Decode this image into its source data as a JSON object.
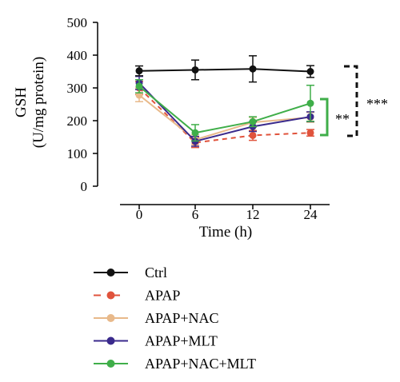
{
  "chart_data": {
    "type": "line",
    "ylabel_line1": "GSH",
    "ylabel_line2": "(U/mg protein)",
    "xlabel": "Time (h)",
    "ylim": [
      0,
      500
    ],
    "yticks": [
      "0",
      "100",
      "200",
      "300",
      "400",
      "500"
    ],
    "x": [
      0,
      6,
      12,
      24
    ],
    "xtick_labels": [
      "0",
      "6",
      "12",
      "24"
    ],
    "grid": false,
    "legend_position": "bottom",
    "series": [
      {
        "name": "Ctrl",
        "color": "#111111",
        "dashed": false,
        "values": [
          352,
          355,
          358,
          350
        ],
        "errors": [
          15,
          30,
          40,
          18
        ]
      },
      {
        "name": "APAP",
        "color": "#e0533c",
        "dashed": true,
        "values": [
          300,
          133,
          155,
          163
        ],
        "errors": [
          20,
          15,
          15,
          10
        ]
      },
      {
        "name": "APAP+NAC",
        "color": "#e8b98a",
        "dashed": false,
        "values": [
          278,
          142,
          195,
          210
        ],
        "errors": [
          20,
          15,
          15,
          15
        ]
      },
      {
        "name": "APAP+MLT",
        "color": "#3a2a8c",
        "dashed": false,
        "values": [
          315,
          137,
          182,
          212
        ],
        "errors": [
          20,
          15,
          15,
          15
        ]
      },
      {
        "name": "APAP+NAC+MLT",
        "color": "#3fae49",
        "dashed": false,
        "values": [
          305,
          163,
          197,
          253
        ],
        "errors": [
          20,
          25,
          15,
          55
        ]
      }
    ],
    "annotations": [
      {
        "label": "**",
        "color": "#3fae49"
      },
      {
        "label": "***",
        "color": "#111111"
      }
    ]
  }
}
